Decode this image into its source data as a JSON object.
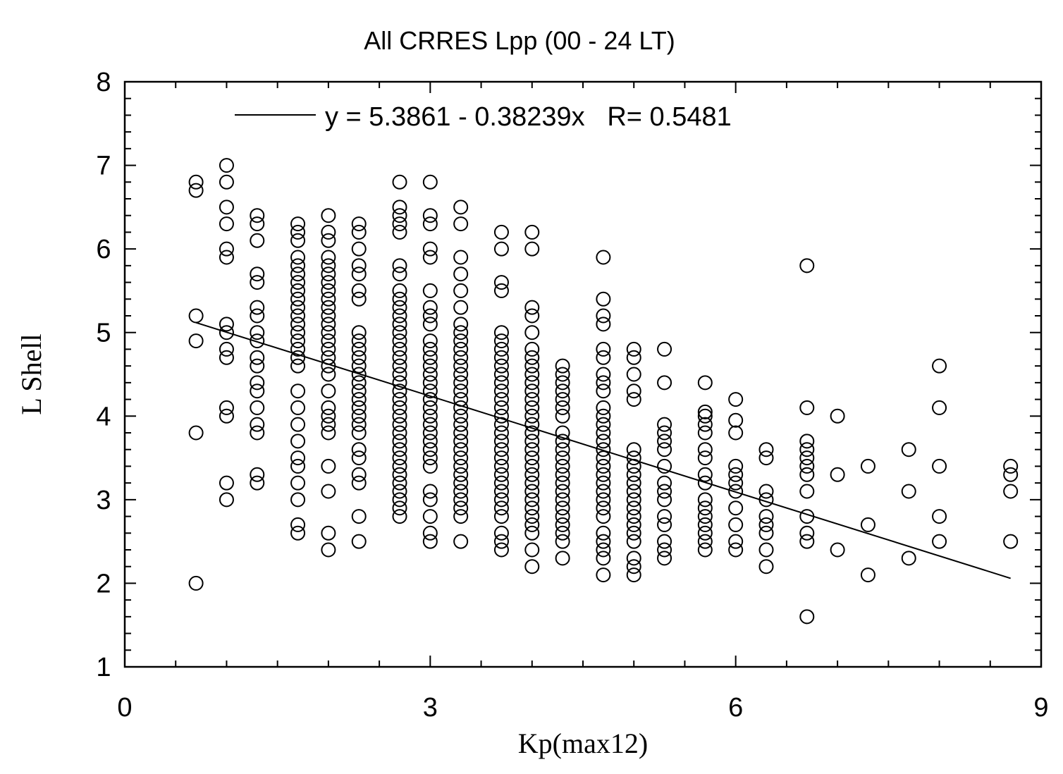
{
  "chart_data": {
    "type": "scatter",
    "title": "All CRRES Lpp (00 - 24 LT)",
    "xlabel": "Kp(max12)",
    "ylabel": "L Shell",
    "xlim": [
      0,
      9
    ],
    "ylim": [
      1,
      8
    ],
    "xticks": [
      0,
      3,
      6,
      9
    ],
    "yticks": [
      1,
      2,
      3,
      4,
      5,
      6,
      7,
      8
    ],
    "grid": false,
    "legend_position": "top",
    "legend": "y = 5.3861 - 0.38239x   R= 0.5481",
    "fit": {
      "intercept": 5.3861,
      "slope": -0.38239,
      "x_range": [
        0.7,
        8.7
      ]
    },
    "columns": [
      {
        "x": 0.7,
        "y": [
          6.8,
          6.7,
          5.2,
          4.9,
          3.8,
          2.0
        ]
      },
      {
        "x": 1.0,
        "y": [
          7.0,
          6.8,
          6.5,
          6.3,
          6.0,
          5.9,
          5.1,
          5.0,
          4.8,
          4.7,
          4.1,
          4.0,
          3.2,
          3.0
        ]
      },
      {
        "x": 1.3,
        "y": [
          6.4,
          6.3,
          6.1,
          5.7,
          5.6,
          5.3,
          5.2,
          5.0,
          4.9,
          4.7,
          4.6,
          4.4,
          4.3,
          4.1,
          3.9,
          3.8,
          3.3,
          3.2
        ]
      },
      {
        "x": 1.7,
        "y": [
          6.3,
          6.2,
          6.1,
          5.9,
          5.8,
          5.7,
          5.6,
          5.5,
          5.4,
          5.3,
          5.2,
          5.1,
          5.0,
          4.9,
          4.8,
          4.7,
          4.6,
          4.3,
          4.1,
          3.9,
          3.7,
          3.5,
          3.4,
          3.2,
          3.0,
          2.7,
          2.6
        ]
      },
      {
        "x": 2.0,
        "y": [
          6.4,
          6.2,
          6.1,
          5.9,
          5.8,
          5.7,
          5.6,
          5.5,
          5.4,
          5.3,
          5.2,
          5.1,
          5.0,
          4.9,
          4.8,
          4.7,
          4.6,
          4.5,
          4.3,
          4.1,
          4.0,
          3.9,
          3.8,
          3.4,
          3.1,
          2.6,
          2.4
        ]
      },
      {
        "x": 2.3,
        "y": [
          6.3,
          6.2,
          6.0,
          5.8,
          5.7,
          5.5,
          5.4,
          5.0,
          4.9,
          4.8,
          4.7,
          4.6,
          4.5,
          4.4,
          4.3,
          4.2,
          4.1,
          4.0,
          3.9,
          3.8,
          3.6,
          3.5,
          3.3,
          3.2,
          2.8,
          2.5
        ]
      },
      {
        "x": 2.7,
        "y": [
          6.8,
          6.5,
          6.4,
          6.3,
          6.2,
          5.8,
          5.7,
          5.5,
          5.4,
          5.3,
          5.2,
          5.1,
          5.0,
          4.9,
          4.8,
          4.7,
          4.6,
          4.5,
          4.4,
          4.3,
          4.2,
          4.1,
          4.0,
          3.9,
          3.8,
          3.7,
          3.6,
          3.5,
          3.4,
          3.3,
          3.2,
          3.1,
          3.0,
          2.9,
          2.8
        ]
      },
      {
        "x": 3.0,
        "y": [
          6.8,
          6.4,
          6.3,
          6.0,
          5.9,
          5.5,
          5.3,
          5.2,
          5.1,
          4.9,
          4.8,
          4.7,
          4.6,
          4.5,
          4.4,
          4.3,
          4.2,
          4.1,
          4.0,
          3.9,
          3.8,
          3.7,
          3.6,
          3.5,
          3.4,
          3.1,
          3.0,
          2.8,
          2.6,
          2.5
        ]
      },
      {
        "x": 3.3,
        "y": [
          6.5,
          6.3,
          5.9,
          5.7,
          5.5,
          5.3,
          5.1,
          5.0,
          4.9,
          4.8,
          4.7,
          4.6,
          4.5,
          4.4,
          4.3,
          4.2,
          4.1,
          4.0,
          3.9,
          3.8,
          3.7,
          3.6,
          3.5,
          3.4,
          3.3,
          3.2,
          3.1,
          3.0,
          2.9,
          2.8,
          2.5
        ]
      },
      {
        "x": 3.7,
        "y": [
          6.2,
          6.0,
          5.6,
          5.5,
          5.0,
          4.9,
          4.8,
          4.7,
          4.6,
          4.5,
          4.4,
          4.3,
          4.2,
          4.1,
          4.0,
          3.9,
          3.8,
          3.7,
          3.6,
          3.5,
          3.4,
          3.3,
          3.2,
          3.1,
          3.0,
          2.9,
          2.8,
          2.6,
          2.5,
          2.4
        ]
      },
      {
        "x": 4.0,
        "y": [
          6.2,
          6.0,
          5.3,
          5.2,
          5.0,
          4.8,
          4.7,
          4.6,
          4.5,
          4.4,
          4.3,
          4.2,
          4.1,
          4.0,
          3.9,
          3.8,
          3.7,
          3.6,
          3.5,
          3.4,
          3.3,
          3.2,
          3.1,
          3.0,
          2.9,
          2.8,
          2.7,
          2.6,
          2.4,
          2.2
        ]
      },
      {
        "x": 4.3,
        "y": [
          4.6,
          4.5,
          4.4,
          4.3,
          4.2,
          4.1,
          4.0,
          3.8,
          3.7,
          3.6,
          3.5,
          3.4,
          3.3,
          3.2,
          3.1,
          3.0,
          2.9,
          2.8,
          2.7,
          2.6,
          2.5,
          2.3
        ]
      },
      {
        "x": 4.7,
        "y": [
          5.9,
          5.4,
          5.2,
          5.1,
          4.8,
          4.7,
          4.5,
          4.4,
          4.3,
          4.1,
          4.0,
          3.9,
          3.8,
          3.7,
          3.6,
          3.5,
          3.4,
          3.3,
          3.2,
          3.1,
          3.0,
          2.9,
          2.8,
          2.6,
          2.5,
          2.4,
          2.3,
          2.1
        ]
      },
      {
        "x": 5.0,
        "y": [
          4.8,
          4.7,
          4.5,
          4.3,
          4.2,
          3.6,
          3.5,
          3.4,
          3.3,
          3.2,
          3.1,
          3.0,
          2.9,
          2.8,
          2.7,
          2.6,
          2.5,
          2.3,
          2.2,
          2.1
        ]
      },
      {
        "x": 5.3,
        "y": [
          4.8,
          4.4,
          3.9,
          3.8,
          3.7,
          3.6,
          3.4,
          3.2,
          3.1,
          3.0,
          2.8,
          2.7,
          2.5,
          2.4,
          2.3
        ]
      },
      {
        "x": 5.7,
        "y": [
          4.4,
          4.05,
          4.0,
          3.9,
          3.8,
          3.6,
          3.5,
          3.3,
          3.2,
          3.0,
          2.9,
          2.8,
          2.7,
          2.6,
          2.5,
          2.4
        ]
      },
      {
        "x": 6.0,
        "y": [
          4.2,
          3.95,
          3.8,
          3.4,
          3.3,
          3.2,
          3.1,
          2.9,
          2.7,
          2.5,
          2.4
        ]
      },
      {
        "x": 6.3,
        "y": [
          3.6,
          3.5,
          3.1,
          3.0,
          2.8,
          2.7,
          2.6,
          2.4,
          2.2
        ]
      },
      {
        "x": 6.7,
        "y": [
          5.8,
          4.1,
          3.7,
          3.6,
          3.5,
          3.4,
          3.3,
          3.1,
          2.8,
          2.6,
          2.5,
          1.6
        ]
      },
      {
        "x": 7.0,
        "y": [
          4.0,
          3.3,
          2.4
        ]
      },
      {
        "x": 7.3,
        "y": [
          3.4,
          2.7,
          2.1
        ]
      },
      {
        "x": 7.7,
        "y": [
          3.6,
          3.1,
          2.3
        ]
      },
      {
        "x": 8.0,
        "y": [
          4.6,
          4.1,
          3.4,
          2.8,
          2.5
        ]
      },
      {
        "x": 8.7,
        "y": [
          3.4,
          3.3,
          3.1,
          2.5
        ]
      }
    ]
  }
}
